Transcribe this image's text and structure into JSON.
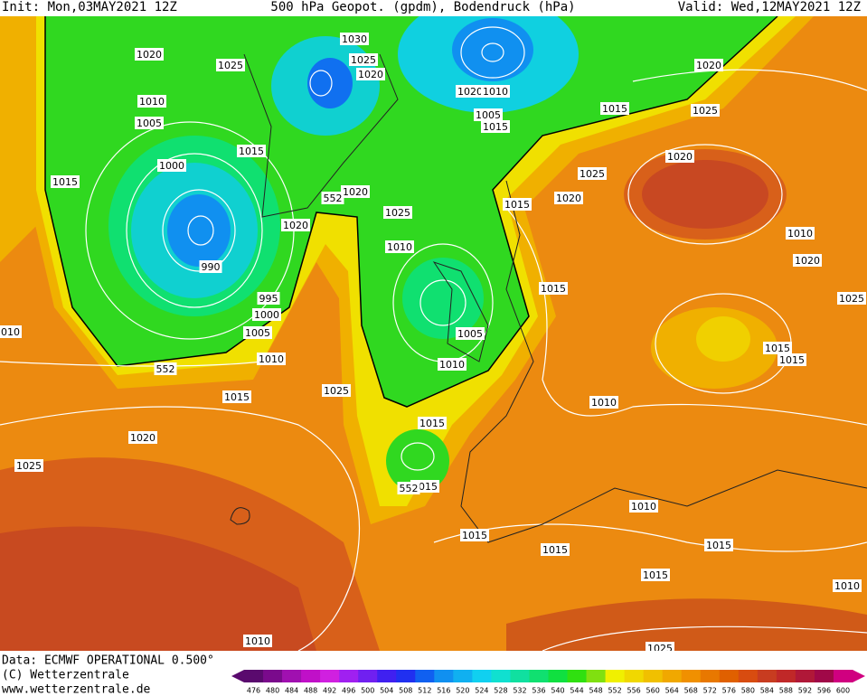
{
  "header": {
    "init": "Init: Mon,03MAY2021 12Z",
    "title": "500 hPa Geopot. (gpdm), Bodendruck (hPa)",
    "valid": "Valid: Wed,12MAY2021 12Z"
  },
  "footer": {
    "data": "Data: ECMWF OPERATIONAL 0.500°",
    "copyright": "(C) Wetterzentrale",
    "url": "www.wetterzentrale.de"
  },
  "colorbar": {
    "ticks": [
      476,
      480,
      484,
      488,
      492,
      496,
      500,
      504,
      508,
      512,
      516,
      520,
      524,
      528,
      532,
      536,
      540,
      544,
      548,
      552,
      556,
      560,
      564,
      568,
      572,
      576,
      580,
      584,
      588,
      592,
      596,
      600
    ],
    "colors": [
      "#5a0a6e",
      "#7a0a8c",
      "#a010b0",
      "#c010c8",
      "#d020e0",
      "#a020f0",
      "#7020f0",
      "#4020f0",
      "#2030f0",
      "#1060f0",
      "#1090f0",
      "#10b0f0",
      "#10d0f0",
      "#10e0d0",
      "#10e0a0",
      "#10e070",
      "#10e040",
      "#30e010",
      "#80e010",
      "#f0f000",
      "#f0d800",
      "#f0c000",
      "#f0a800",
      "#f09000",
      "#e87800",
      "#e06000",
      "#d84c10",
      "#c83c20",
      "#c02828",
      "#b01838",
      "#a00848",
      "#d00080"
    ]
  },
  "isobar_labels": [
    "1020",
    "1025",
    "1030",
    "1025",
    "1020",
    "1010",
    "1005",
    "1015",
    "1000",
    "1015",
    "990",
    "995",
    "1000",
    "1005",
    "1010",
    "1015",
    "1020",
    "1025",
    "1025",
    "1020",
    "1020",
    "1025",
    "1020",
    "1010",
    "1005",
    "1015",
    "1020",
    "1015",
    "1025",
    "1020",
    "1025",
    "1020",
    "1015",
    "1010",
    "1020",
    "1015",
    "1005",
    "1010",
    "1015",
    "1015",
    "1010",
    "1015",
    "1015",
    "1010",
    "1015",
    "1015",
    "1015",
    "1015",
    "1010",
    "1010",
    "1025",
    "1010",
    "1025",
    "1010",
    "552",
    "552",
    "552"
  ]
}
